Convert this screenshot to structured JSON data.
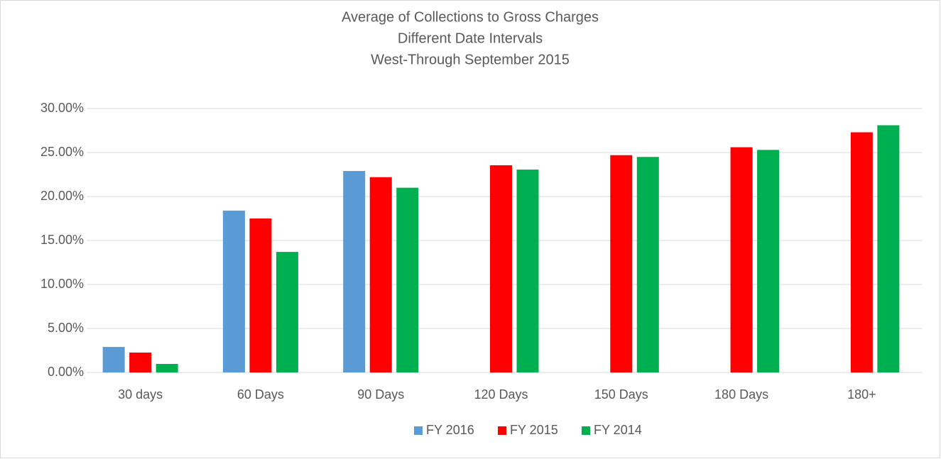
{
  "chart_data": {
    "type": "bar",
    "title": "Average  of Collections to Gross Charges",
    "subtitle": [
      "Different Date Intervals",
      "West-Through September 2015"
    ],
    "categories": [
      "30 days",
      "60 Days",
      "90 Days",
      "120 Days",
      "150 Days",
      "180 Days",
      "180+"
    ],
    "series": [
      {
        "name": "FY 2016",
        "color": "#5b9bd5",
        "values": [
          2.9,
          18.4,
          22.9,
          null,
          null,
          null,
          null
        ]
      },
      {
        "name": "FY 2015",
        "color": "#ff0000",
        "values": [
          2.26,
          17.5,
          22.2,
          23.55,
          24.7,
          25.6,
          27.3
        ]
      },
      {
        "name": "FY 2014",
        "color": "#00b050",
        "values": [
          0.97,
          13.7,
          21.0,
          23.06,
          24.5,
          25.3,
          28.1
        ]
      }
    ],
    "ylim": [
      0,
      30
    ],
    "yticks": [
      {
        "value": 0,
        "label": "0.00%"
      },
      {
        "value": 5,
        "label": "5.00%"
      },
      {
        "value": 10,
        "label": "10.00%"
      },
      {
        "value": 15,
        "label": "15.00%"
      },
      {
        "value": 20,
        "label": "20.00%"
      },
      {
        "value": 25,
        "label": "25.00%"
      },
      {
        "value": 30,
        "label": "30.00%"
      }
    ],
    "grid": true,
    "legend": "bottom"
  }
}
